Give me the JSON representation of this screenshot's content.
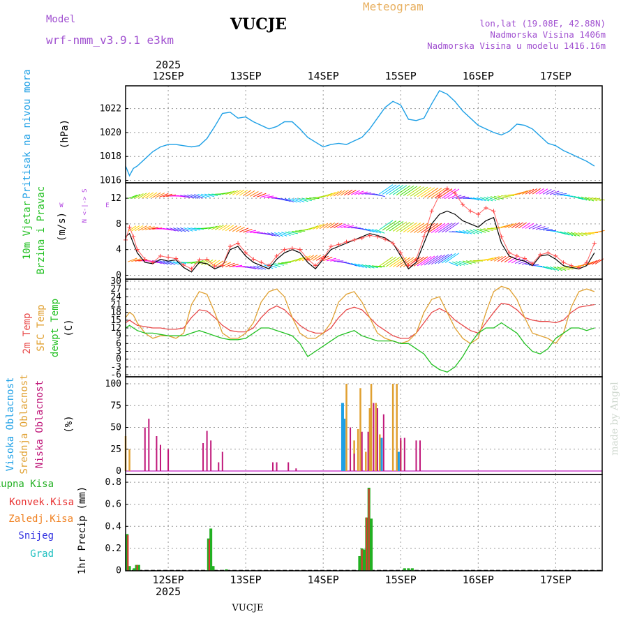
{
  "header": {
    "model_label": "Model",
    "model_name": "wrf-nmm_v3.9.1 e3km",
    "station": "VUCJE",
    "product": "Meteogram",
    "coords": "lon,lat (19.08E, 42.88N)",
    "elevation": "Nadmorska Visina 1406m",
    "model_elevation": "Nadmorska Visina u modelu 1416.16m",
    "year": "2025",
    "footer_station": "VUCJE",
    "credit": "made by Angel"
  },
  "colors": {
    "pressure": "#1ea0e6",
    "wind_label": "#22c022",
    "wind_arrow_label": "#b040e0",
    "temp": "#e84848",
    "sfc_temp": "#e0a030",
    "dewpt": "#22c022",
    "high_cloud": "#1ea0e6",
    "mid_cloud": "#e0a030",
    "low_cloud": "#c0187a",
    "total_precip": "#22b022",
    "conv_precip": "#e83030",
    "frozen_precip": "#f08020",
    "snow": "#3030e0",
    "graupel": "#20c0c0",
    "title": "#000000",
    "model": "#a050d0",
    "meteogram": "#e8b060"
  },
  "chart_data": [
    {
      "type": "line",
      "panel": "pressure",
      "ylabel_name": "Pritisak na nivou mora",
      "ylabel_unit": "(hPa)",
      "ylim": [
        1015.8,
        1023.9
      ],
      "yticks": [
        1016,
        1018,
        1020,
        1022
      ],
      "x_unit": "days since 12SEP 00Z",
      "x": [
        -0.55,
        -0.5,
        -0.45,
        -0.4,
        -0.3,
        -0.2,
        -0.1,
        0,
        0.1,
        0.2,
        0.3,
        0.4,
        0.5,
        0.6,
        0.7,
        0.8,
        0.9,
        1.0,
        1.1,
        1.2,
        1.3,
        1.4,
        1.5,
        1.6,
        1.7,
        1.8,
        1.9,
        2.0,
        2.1,
        2.2,
        2.3,
        2.4,
        2.5,
        2.6,
        2.7,
        2.8,
        2.9,
        3.0,
        3.1,
        3.2,
        3.3,
        3.4,
        3.5,
        3.6,
        3.7,
        3.8,
        3.9,
        4.0,
        4.1,
        4.2,
        4.3,
        4.4,
        4.5,
        4.6,
        4.7,
        4.8,
        4.9,
        5.0,
        5.1,
        5.2,
        5.3,
        5.4,
        5.5
      ],
      "series": [
        {
          "name": "Pritisak",
          "values": [
            1017.2,
            1016.4,
            1017.0,
            1017.2,
            1017.8,
            1018.4,
            1018.8,
            1019.0,
            1019.0,
            1018.9,
            1018.8,
            1018.9,
            1019.5,
            1020.5,
            1021.6,
            1021.7,
            1021.2,
            1021.3,
            1020.9,
            1020.6,
            1020.3,
            1020.5,
            1020.9,
            1020.9,
            1020.3,
            1019.6,
            1019.2,
            1018.8,
            1019.0,
            1019.1,
            1019.0,
            1019.3,
            1019.6,
            1020.3,
            1021.2,
            1022.1,
            1022.6,
            1022.3,
            1021.1,
            1021.0,
            1021.2,
            1022.4,
            1023.5,
            1023.2,
            1022.6,
            1021.8,
            1021.2,
            1020.6,
            1020.3,
            1020.0,
            1019.8,
            1020.1,
            1020.7,
            1020.6,
            1020.3,
            1019.7,
            1019.1,
            1018.9,
            1018.5,
            1018.2,
            1017.9,
            1017.6,
            1017.2
          ]
        }
      ]
    },
    {
      "type": "line",
      "panel": "wind",
      "ylabel_name": "10m Vjetar",
      "ylabel_sub": "Brzina i Pravac",
      "ylabel_unit": "(m/s)",
      "direction_key": [
        "N",
        "W",
        "E",
        "S"
      ],
      "ylim": [
        -0.6,
        14.4
      ],
      "yticks": [
        0,
        4,
        8,
        12
      ],
      "x": [
        -0.55,
        -0.5,
        -0.45,
        -0.4,
        -0.3,
        -0.2,
        -0.1,
        0,
        0.1,
        0.2,
        0.3,
        0.4,
        0.5,
        0.6,
        0.7,
        0.8,
        0.9,
        1.0,
        1.1,
        1.2,
        1.3,
        1.4,
        1.5,
        1.6,
        1.7,
        1.8,
        1.9,
        2.0,
        2.1,
        2.2,
        2.3,
        2.4,
        2.5,
        2.6,
        2.7,
        2.8,
        2.9,
        3.0,
        3.1,
        3.2,
        3.3,
        3.4,
        3.5,
        3.6,
        3.7,
        3.8,
        3.9,
        4.0,
        4.1,
        4.2,
        4.3,
        4.4,
        4.5,
        4.6,
        4.7,
        4.8,
        4.9,
        5.0,
        5.1,
        5.2,
        5.3,
        5.4,
        5.5
      ],
      "series": [
        {
          "name": "Brzina",
          "values": [
            6,
            6.5,
            5,
            3.5,
            2,
            1.8,
            2.5,
            2.2,
            2.4,
            1.2,
            0.5,
            2,
            1.8,
            1,
            1.5,
            4,
            4.5,
            3,
            2,
            1.5,
            1,
            2.5,
            3.5,
            4,
            3.5,
            2,
            1,
            2.5,
            4,
            4.5,
            5,
            5.5,
            6,
            6.5,
            6.2,
            5.8,
            5,
            3,
            1,
            2,
            5,
            8,
            9.5,
            10,
            9.5,
            8.5,
            8,
            7.5,
            8.5,
            9,
            5,
            3,
            2.5,
            2.2,
            1.5,
            3,
            3.2,
            2.5,
            1.5,
            1.2,
            1.0,
            1.5,
            3.5
          ]
        },
        {
          "name": "Udari",
          "values": [
            5.5,
            7.5,
            6,
            4,
            2.5,
            2,
            3,
            2.8,
            2.6,
            1.6,
            1.0,
            2.4,
            2.5,
            1.4,
            1.5,
            4.5,
            5,
            3.5,
            2.5,
            2.0,
            1.5,
            3,
            4,
            4.2,
            4,
            2.5,
            1.5,
            2.6,
            4.5,
            4.8,
            5.2,
            5.5,
            5.8,
            6.2,
            6.0,
            5.6,
            5.0,
            3.5,
            1.5,
            2.5,
            6,
            10,
            12.5,
            13.5,
            12.8,
            11,
            10,
            9.5,
            10.5,
            10,
            6,
            3.5,
            3,
            2.6,
            1.8,
            3.2,
            3.5,
            3,
            2,
            1.5,
            1.2,
            2,
            5
          ]
        }
      ]
    },
    {
      "type": "line",
      "panel": "temperature",
      "ylabel_temp": "2m Temp",
      "ylabel_sfc": "SFC Temp",
      "ylabel_dew": "dewpt Temp",
      "ylabel_unit": "(C)",
      "ylim": [
        -6.8,
        30.8
      ],
      "yticks": [
        -6,
        -3,
        0,
        3,
        6,
        9,
        12,
        15,
        18,
        21,
        24,
        27,
        30
      ],
      "x": [
        -0.55,
        -0.5,
        -0.45,
        -0.4,
        -0.3,
        -0.2,
        -0.1,
        0,
        0.1,
        0.2,
        0.3,
        0.4,
        0.5,
        0.6,
        0.7,
        0.8,
        0.9,
        1.0,
        1.1,
        1.2,
        1.3,
        1.4,
        1.5,
        1.6,
        1.7,
        1.8,
        1.9,
        2.0,
        2.1,
        2.2,
        2.3,
        2.4,
        2.5,
        2.6,
        2.7,
        2.8,
        2.9,
        3.0,
        3.1,
        3.2,
        3.3,
        3.4,
        3.5,
        3.6,
        3.7,
        3.8,
        3.9,
        4.0,
        4.1,
        4.2,
        4.3,
        4.4,
        4.5,
        4.6,
        4.7,
        4.8,
        4.9,
        5.0,
        5.1,
        5.2,
        5.3,
        5.4,
        5.5
      ],
      "series": [
        {
          "name": "2m Temp",
          "values": [
            14,
            15,
            14,
            13,
            12.5,
            12,
            12,
            11.5,
            11.5,
            12,
            16,
            19,
            18.5,
            16,
            13,
            11,
            10.5,
            10.5,
            12,
            16,
            19,
            20.5,
            19,
            16,
            13,
            11,
            10,
            10,
            12,
            16,
            19,
            20,
            19,
            16,
            13,
            11,
            9,
            8,
            8,
            10,
            14,
            18,
            19.5,
            18,
            15,
            13,
            11,
            10,
            14,
            18,
            21.5,
            21,
            19,
            16,
            15,
            14.5,
            14.5,
            14,
            15,
            18,
            20,
            20.5,
            21
          ]
        },
        {
          "name": "SFC Temp",
          "values": [
            16,
            18,
            17,
            14,
            10,
            8,
            9,
            9,
            8,
            10,
            21,
            26,
            25,
            18,
            10,
            8,
            8,
            10,
            14,
            22,
            26,
            27,
            24,
            16,
            10,
            8,
            8,
            10,
            14,
            22,
            25,
            26,
            22,
            16,
            10,
            8,
            7,
            6,
            7,
            10,
            18,
            23,
            24,
            18,
            12,
            8,
            6,
            8,
            18,
            26,
            28,
            27,
            23,
            16,
            10,
            9,
            8,
            6,
            10,
            20,
            26,
            27,
            26
          ]
        },
        {
          "name": "dewpt Temp",
          "values": [
            12,
            13,
            12,
            11,
            10,
            10,
            9.5,
            9,
            9,
            9,
            10,
            11,
            10,
            9,
            8,
            7.5,
            7.5,
            8,
            10,
            12,
            12,
            11,
            10,
            9,
            6,
            1,
            3,
            5,
            7,
            9,
            10,
            11,
            9,
            8,
            7,
            7,
            7,
            6,
            6,
            4,
            2,
            -2,
            -4,
            -5,
            -3,
            1,
            6,
            10,
            12,
            12,
            14,
            12,
            10,
            6,
            3,
            2,
            4,
            8,
            10,
            12,
            12,
            11,
            12
          ]
        }
      ]
    },
    {
      "type": "bar",
      "panel": "cloud",
      "ylabel_high": "Visoka Oblacnost",
      "ylabel_mid": "Srednja Oblacnost",
      "ylabel_low": "Niska Oblacnost",
      "ylabel_unit": "(%)",
      "ylim": [
        -4,
        108
      ],
      "yticks": [
        0,
        25,
        50,
        75,
        100
      ],
      "series": [
        {
          "name": "Visoka Oblacnost",
          "x": [
            2.25,
            2.27,
            2.75,
            2.97
          ],
          "values": [
            78,
            60,
            38,
            22
          ]
        },
        {
          "name": "Srednja Oblacnost",
          "x": [
            -0.55,
            -0.5,
            2.3,
            2.4,
            2.45,
            2.48,
            2.55,
            2.6,
            2.62,
            2.68,
            2.73,
            2.9,
            2.95,
            3.0
          ],
          "values": [
            40,
            25,
            100,
            35,
            48,
            95,
            22,
            72,
            100,
            78,
            42,
            100,
            100,
            35
          ]
        },
        {
          "name": "Niska Oblacnost",
          "x": [
            -0.3,
            -0.25,
            -0.15,
            -0.1,
            0,
            0.45,
            0.5,
            0.55,
            0.65,
            0.7,
            1.35,
            1.4,
            1.55,
            1.65,
            2.35,
            2.4,
            2.5,
            2.58,
            2.65,
            2.7,
            2.78,
            3.0,
            3.05,
            3.2,
            3.25
          ],
          "values": [
            50,
            60,
            40,
            30,
            25,
            32,
            46,
            35,
            10,
            22,
            10,
            10,
            10,
            3,
            50,
            20,
            45,
            45,
            78,
            72,
            65,
            38,
            38,
            35,
            35
          ]
        }
      ]
    },
    {
      "type": "bar",
      "panel": "precipitation",
      "legend": [
        "Ukupna Kisa",
        "Konvek.Kisa",
        "Zaledj.Kisa",
        "Snijeg",
        "Grad"
      ],
      "ylabel_name": "1hr Precip",
      "ylabel_unit": "(mm)",
      "ylim": [
        -0.003,
        0.87
      ],
      "yticks": [
        0,
        0.2,
        0.4,
        0.6,
        0.8
      ],
      "series": [
        {
          "name": "Ukupna Kisa",
          "x": [
            -0.53,
            -0.5,
            -0.44,
            -0.41,
            -0.38,
            0.52,
            0.55,
            0.58,
            0.75,
            2.47,
            2.5,
            2.53,
            2.56,
            2.59,
            2.62,
            2.65,
            3.05,
            3.1,
            3.15
          ],
          "values": [
            0.33,
            0.04,
            0.02,
            0.05,
            0.05,
            0.29,
            0.38,
            0.04,
            0.01,
            0.13,
            0.2,
            0.19,
            0.48,
            0.75,
            0.47,
            0.0,
            0.02,
            0.02,
            0.02
          ]
        },
        {
          "name": "Konvek.Kisa",
          "x": [
            -0.52,
            -0.4,
            0.53,
            2.5,
            2.56,
            2.59
          ],
          "values": [
            0.32,
            0.05,
            0.28,
            0.19,
            0.48,
            0.74
          ]
        }
      ]
    }
  ],
  "x_axis": {
    "top_labels": [
      "12SEP",
      "13SEP",
      "14SEP",
      "15SEP",
      "16SEP",
      "17SEP"
    ],
    "bottom_labels": [
      "12SEP",
      "13SEP",
      "14SEP",
      "15SEP",
      "16SEP",
      "17SEP"
    ],
    "x_range": [
      -0.55,
      5.6
    ]
  }
}
